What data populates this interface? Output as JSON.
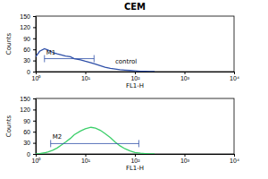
{
  "chart_data": [
    {
      "type": "line",
      "title": "CEM",
      "x_label": "FL1-H",
      "y_label": "Counts",
      "log": "x",
      "xlim": [
        1,
        10000
      ],
      "xticks": [
        {
          "value": 1,
          "label": "10⁰"
        },
        {
          "value": 10,
          "label": "10¹"
        },
        {
          "value": 100,
          "label": "10²"
        },
        {
          "value": 1000,
          "label": "10³"
        },
        {
          "value": 10000,
          "label": "10⁴"
        }
      ],
      "ylim": [
        0,
        150
      ],
      "yticks": [
        0,
        30,
        60,
        90,
        120,
        150
      ],
      "x": [
        1,
        1.2,
        1.5,
        1.8,
        2.2,
        2.7,
        3.3,
        4,
        5,
        6,
        8,
        10,
        13,
        16,
        20,
        25,
        32,
        40,
        50,
        63,
        80,
        100,
        130,
        160,
        200,
        250
      ],
      "series": [
        {
          "color": "#2e4fa8",
          "values": [
            40,
            55,
            62,
            58,
            52,
            48,
            45,
            42,
            40,
            35,
            32,
            28,
            24,
            20,
            16,
            12,
            9,
            7,
            5,
            4,
            3,
            2,
            1,
            1,
            0,
            0
          ]
        }
      ],
      "gates": [
        {
          "label": "M1",
          "range": [
            1.5,
            15
          ],
          "y": 35
        }
      ],
      "annotations": [
        {
          "text": "control",
          "x": 40,
          "y": 22
        }
      ]
    },
    {
      "type": "line",
      "x_label": "FL1-H",
      "y_label": "Counts",
      "log": "x",
      "xlim": [
        1,
        10000
      ],
      "xticks": [
        {
          "value": 1,
          "label": "10⁰"
        },
        {
          "value": 10,
          "label": "10¹"
        },
        {
          "value": 100,
          "label": "10²"
        },
        {
          "value": 1000,
          "label": "10³"
        },
        {
          "value": 10000,
          "label": "10⁴"
        }
      ],
      "ylim": [
        0,
        150
      ],
      "yticks": [
        0,
        30,
        60,
        90,
        120,
        150
      ],
      "x": [
        1,
        1.2,
        1.5,
        1.8,
        2.2,
        2.7,
        3.3,
        4,
        5,
        6,
        8,
        10,
        13,
        16,
        20,
        25,
        32,
        40,
        50,
        63,
        80,
        100,
        130,
        160,
        200,
        250
      ],
      "series": [
        {
          "color": "#3ccf6a",
          "values": [
            0,
            1,
            3,
            6,
            10,
            16,
            24,
            32,
            42,
            52,
            62,
            68,
            72,
            70,
            64,
            55,
            44,
            32,
            22,
            14,
            8,
            4,
            2,
            1,
            0,
            0
          ]
        }
      ],
      "gates": [
        {
          "label": "M2",
          "range": [
            2,
            120
          ],
          "y": 28
        }
      ]
    }
  ]
}
